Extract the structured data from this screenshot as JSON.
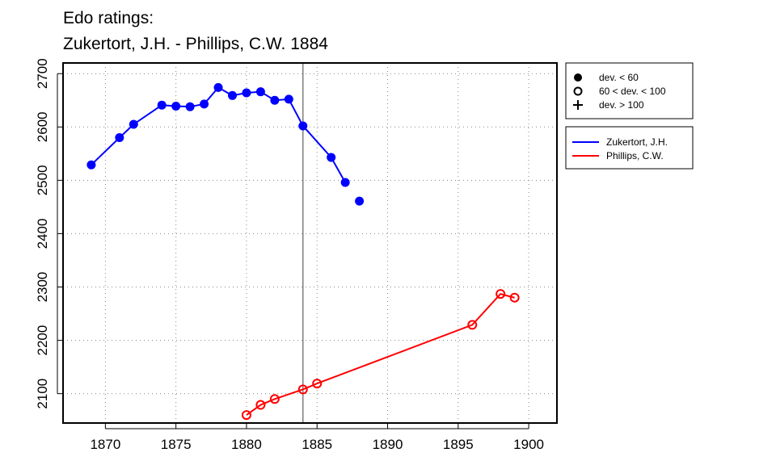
{
  "chart_data": {
    "type": "line",
    "title": [
      "Edo ratings:",
      "Zukertort, J.H. - Phillips, C.W. 1884"
    ],
    "xlabel": "",
    "ylabel": "",
    "xlim": [
      1867,
      1902
    ],
    "ylim": [
      2045,
      2720
    ],
    "x_ticks": [
      1870,
      1875,
      1880,
      1885,
      1890,
      1895,
      1900
    ],
    "y_ticks": [
      2100,
      2200,
      2300,
      2400,
      2500,
      2600,
      2700
    ],
    "grid": true,
    "reference_line_x": 1884,
    "series": [
      {
        "name": "Zukertort, J.H.",
        "color": "#0000ff",
        "marker": "filled-circle",
        "x": [
          1869,
          1871,
          1872,
          1874,
          1875,
          1876,
          1877,
          1878,
          1879,
          1880,
          1881,
          1882,
          1883,
          1884,
          1886,
          1887
        ],
        "y": [
          2529,
          2580,
          2605,
          2641,
          2639,
          2638,
          2643,
          2674,
          2659,
          2664,
          2666,
          2650,
          2652,
          2602,
          2543,
          2496
        ]
      },
      {
        "name": "Phillips, C.W.",
        "color": "#ff0000",
        "marker": "open-circle",
        "x": [
          1880,
          1881,
          1882,
          1884,
          1885,
          1896,
          1898,
          1899
        ],
        "y": [
          2060,
          2079,
          2090,
          2108,
          2119,
          2229,
          2287,
          2280
        ]
      }
    ],
    "isolated_points": [
      {
        "series": "Zukertort, J.H.",
        "x": 1888,
        "y": 2461
      }
    ],
    "legend_markers": {
      "position": "right",
      "items": [
        {
          "symbol": "filled-circle",
          "label": "dev. < 60"
        },
        {
          "symbol": "open-circle",
          "label": "60 < dev. < 100"
        },
        {
          "symbol": "plus",
          "label": "dev. > 100"
        }
      ]
    },
    "legend_series": {
      "position": "right",
      "items": [
        {
          "label": "Zukertort, J.H.",
          "color": "#0000ff"
        },
        {
          "label": "Phillips, C.W.",
          "color": "#ff0000"
        }
      ]
    }
  }
}
